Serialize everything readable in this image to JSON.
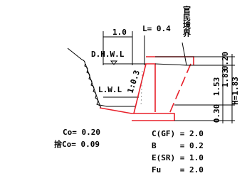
{
  "drawing": {
    "boundary": "官民境界",
    "crest_width": "1.0",
    "wall_top": "L= 0.4",
    "high_water": "D.H.W.L",
    "low_water": "L.W.L",
    "slope": "1:0.3",
    "dims": {
      "top": "0.20",
      "upper": "1.83",
      "middle": "1.53",
      "height": "H=1.83",
      "base": "0.30"
    },
    "concrete": [
      "Co= 0.20",
      "捨Co= 0.09"
    ],
    "params": [
      "C(GF) = 2.0",
      "B     = 0.2",
      "E(SR) = 1.0",
      "Fu    = 2.0"
    ]
  }
}
